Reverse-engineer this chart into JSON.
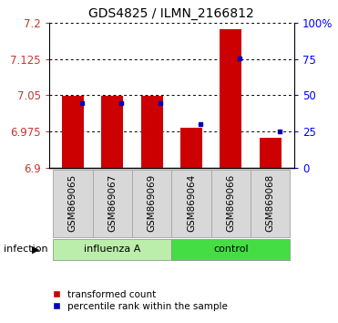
{
  "title": "GDS4825 / ILMN_2166812",
  "samples": [
    "GSM869065",
    "GSM869067",
    "GSM869069",
    "GSM869064",
    "GSM869066",
    "GSM869068"
  ],
  "red_values": [
    7.048,
    7.048,
    7.048,
    6.983,
    7.187,
    6.963
  ],
  "blue_values": [
    7.033,
    7.034,
    7.034,
    6.99,
    7.126,
    6.976
  ],
  "ymin": 6.9,
  "ymax": 7.2,
  "yticks_left": [
    6.9,
    6.975,
    7.05,
    7.125,
    7.2
  ],
  "pct_ticks": [
    0,
    25,
    50,
    75,
    100
  ],
  "pct_labels": [
    "0",
    "25",
    "50",
    "75",
    "100%"
  ],
  "influenza_group": [
    0,
    1,
    2
  ],
  "control_group": [
    3,
    4,
    5
  ],
  "group_label_influenza": "influenza A",
  "group_label_control": "control",
  "color_influenza": "#bbeeaa",
  "color_control": "#44dd44",
  "infection_label": "infection",
  "legend_red_label": "transformed count",
  "legend_blue_label": "percentile rank within the sample",
  "bar_color": "#cc0000",
  "dot_color": "#0000bb",
  "bar_width": 0.55,
  "tick_bg_color": "#d8d8d8",
  "tick_border_color": "#aaaaaa"
}
